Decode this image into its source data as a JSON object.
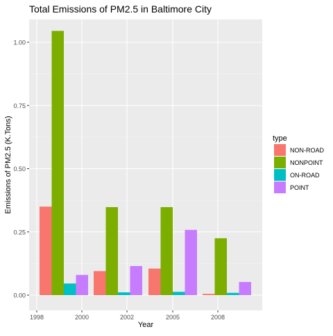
{
  "chart_data": {
    "type": "bar",
    "title": "Total Emissions of PM2.5 in Baltimore City",
    "xlabel": "Year",
    "ylabel": "Emissions of PM2.5 (K.Tons)",
    "categories": [
      "1999",
      "2002",
      "2005",
      "2008"
    ],
    "x_tick_labels": [
      "1998",
      "2000",
      "2002",
      "2005",
      "2008"
    ],
    "y_ticks": [
      "0.00",
      "0.25",
      "0.50",
      "0.75",
      "1.00"
    ],
    "ylim": [
      0,
      1.1
    ],
    "grid": true,
    "legend": {
      "title": "type",
      "placement": "right"
    },
    "series": [
      {
        "name": "NON-ROAD",
        "color": "#F8766D",
        "values": [
          0.35,
          0.095,
          0.105,
          0.005
        ]
      },
      {
        "name": "NONPOINT",
        "color": "#7CAE00",
        "values": [
          1.045,
          0.348,
          0.348,
          0.225
        ]
      },
      {
        "name": "ON-ROAD",
        "color": "#00BFC4",
        "values": [
          0.046,
          0.011,
          0.013,
          0.009
        ]
      },
      {
        "name": "POINT",
        "color": "#C77CFF",
        "values": [
          0.08,
          0.115,
          0.258,
          0.052
        ]
      }
    ]
  }
}
